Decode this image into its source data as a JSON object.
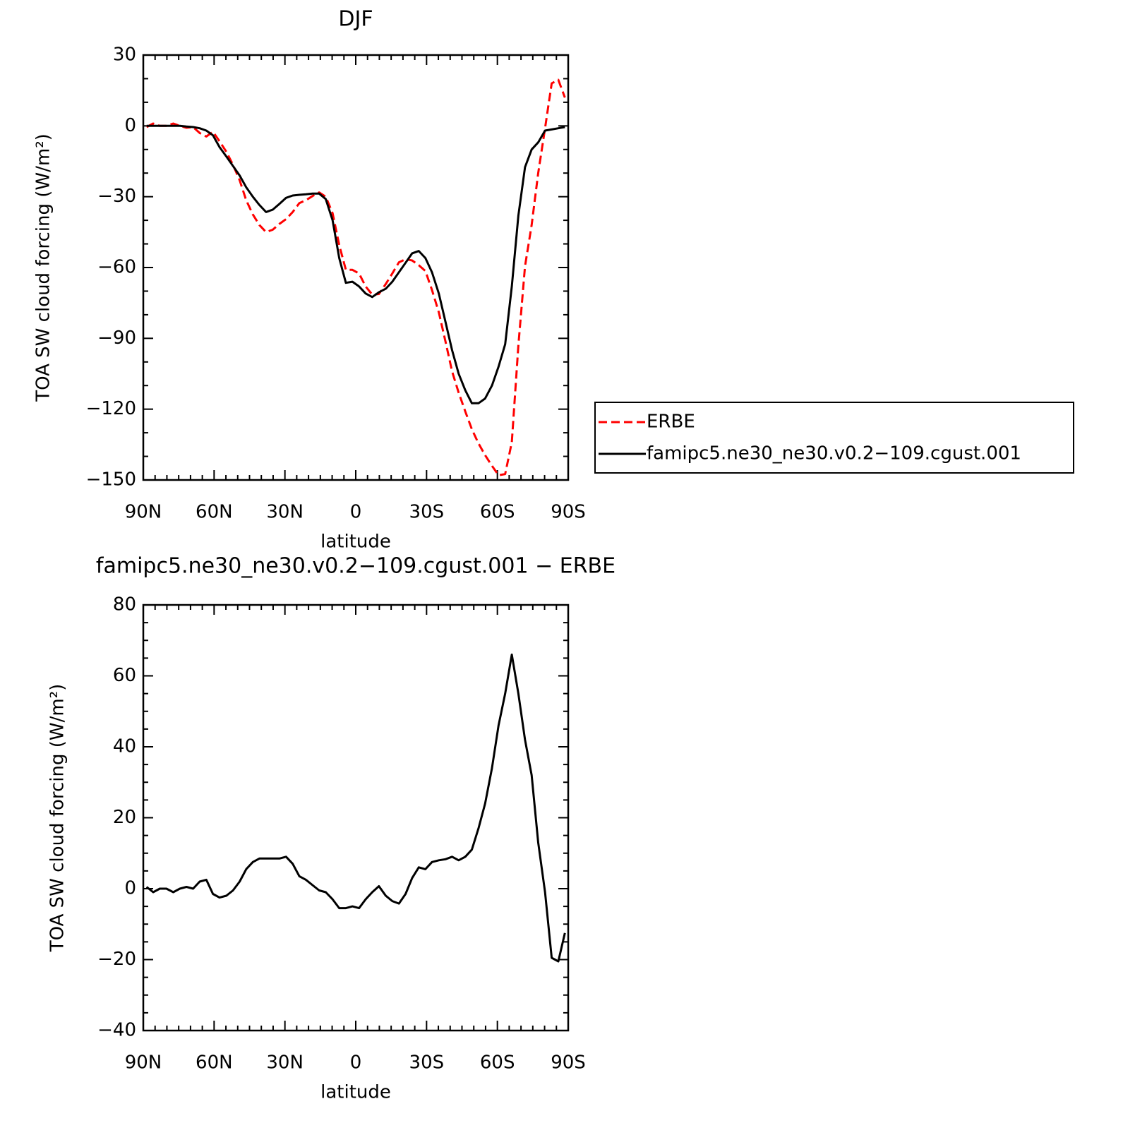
{
  "chart_data": [
    {
      "type": "line",
      "title": "DJF",
      "xlabel": "latitude",
      "ylabel": "TOA SW cloud forcing (W/m²)",
      "x": [
        88.6,
        85.8,
        83.0,
        80.2,
        77.3,
        74.5,
        71.7,
        68.9,
        66.1,
        63.3,
        60.5,
        57.7,
        54.8,
        52.0,
        49.2,
        46.4,
        43.6,
        40.8,
        38.0,
        35.2,
        32.3,
        29.5,
        26.7,
        23.9,
        21.1,
        18.3,
        15.5,
        12.7,
        9.8,
        7.0,
        4.2,
        1.4,
        -1.4,
        -4.2,
        -7.0,
        -9.8,
        -12.7,
        -15.5,
        -18.3,
        -21.1,
        -23.9,
        -26.7,
        -29.5,
        -32.3,
        -35.2,
        -38.0,
        -40.8,
        -43.6,
        -46.4,
        -49.2,
        -52.0,
        -54.8,
        -57.7,
        -60.5,
        -63.3,
        -66.1,
        -68.9,
        -71.7,
        -74.5,
        -77.3,
        -80.2,
        -83.0,
        -85.8,
        -88.6
      ],
      "series": [
        {
          "name": "ERBE",
          "color": "#ff0000",
          "dash": true,
          "values": [
            -0.5,
            1,
            0,
            0,
            1,
            0,
            -0.8,
            -0.5,
            -3,
            -4.5,
            -2.5,
            -6.5,
            -11,
            -16.5,
            -23,
            -31.5,
            -37.5,
            -42,
            -45,
            -44,
            -41.5,
            -39.5,
            -36.5,
            -32.7,
            -31.5,
            -29.7,
            -28.2,
            -30,
            -37,
            -50.5,
            -61,
            -61,
            -62.5,
            -68,
            -71.5,
            -71.2,
            -67,
            -62.5,
            -57.8,
            -56.5,
            -57,
            -59,
            -61.5,
            -69.5,
            -79,
            -91.3,
            -104,
            -113,
            -121,
            -128.5,
            -134.5,
            -139.5,
            -144,
            -148,
            -147.5,
            -134,
            -93,
            -59.5,
            -42,
            -20,
            -1,
            18,
            19.5,
            12
          ]
        },
        {
          "name": "famipc5.ne30_ne30.v0.2−109.cgust.001",
          "color": "#000000",
          "dash": false,
          "values": [
            0,
            0,
            0,
            0,
            0,
            0,
            -0.3,
            -0.5,
            -1,
            -2,
            -4,
            -9,
            -13,
            -17,
            -21,
            -26,
            -30,
            -33.5,
            -36.5,
            -35.5,
            -33,
            -30.5,
            -29.5,
            -29.2,
            -29,
            -28.7,
            -28.7,
            -31,
            -40,
            -56,
            -66.5,
            -66,
            -68,
            -71,
            -72.5,
            -70.5,
            -69,
            -66,
            -62,
            -58,
            -54,
            -53,
            -56,
            -62,
            -71,
            -83,
            -95,
            -105,
            -112,
            -117.5,
            -117.5,
            -115.5,
            -110,
            -102,
            -92.5,
            -68,
            -38,
            -17.5,
            -10,
            -7,
            -2,
            -1.5,
            -1,
            -0.5
          ]
        }
      ],
      "xlim": [
        90,
        -90
      ],
      "xticks": [
        {
          "value": 90,
          "label": "90N"
        },
        {
          "value": 60,
          "label": "60N"
        },
        {
          "value": 30,
          "label": "30N"
        },
        0,
        {
          "value": -30,
          "label": "30S"
        },
        {
          "value": -60,
          "label": "60S"
        },
        {
          "value": -90,
          "label": "90S"
        }
      ],
      "xminorticks": [
        85,
        80,
        75,
        70,
        65,
        55,
        50,
        45,
        40,
        35,
        25,
        20,
        15,
        10,
        5,
        -5,
        -10,
        -15,
        -20,
        -25,
        -35,
        -40,
        -45,
        -50,
        -55,
        -65,
        -70,
        -75,
        -80,
        -85
      ],
      "ylim": [
        -150,
        30
      ],
      "yticks": [
        {
          "value": 30,
          "label": "30"
        },
        0,
        {
          "value": -30,
          "label": "−30"
        },
        {
          "value": -60,
          "label": "−60"
        },
        {
          "value": -90,
          "label": "−90"
        },
        {
          "value": -120,
          "label": "−120"
        },
        {
          "value": -150,
          "label": "−150"
        }
      ],
      "yminorticks": [
        20,
        10,
        -10,
        -20,
        -40,
        -50,
        -70,
        -80,
        -100,
        -110,
        -130,
        -140
      ],
      "legend": "outside right"
    },
    {
      "type": "line",
      "title": "famipc5.ne30_ne30.v0.2−109.cgust.001 − ERBE",
      "xlabel": "latitude",
      "ylabel": "TOA SW cloud forcing (W/m²)",
      "x": [
        88.6,
        85.8,
        83.0,
        80.2,
        77.3,
        74.5,
        71.7,
        68.9,
        66.1,
        63.3,
        60.5,
        57.7,
        54.8,
        52.0,
        49.2,
        46.4,
        43.6,
        40.8,
        38.0,
        35.2,
        32.3,
        29.5,
        26.7,
        23.9,
        21.1,
        18.3,
        15.5,
        12.7,
        9.8,
        7.0,
        4.2,
        1.4,
        -1.4,
        -4.2,
        -7.0,
        -9.8,
        -12.7,
        -15.5,
        -18.3,
        -21.1,
        -23.9,
        -26.7,
        -29.5,
        -32.3,
        -35.2,
        -38.0,
        -40.8,
        -43.6,
        -46.4,
        -49.2,
        -52.0,
        -54.8,
        -57.7,
        -60.5,
        -63.3,
        -66.1,
        -68.9,
        -71.7,
        -74.5,
        -77.3,
        -80.2,
        -83.0,
        -85.8,
        -88.6
      ],
      "series": [
        {
          "color": "#000000",
          "dash": false,
          "values": [
            0.5,
            -1,
            0,
            0,
            -1,
            0,
            0.5,
            0,
            2,
            2.5,
            -1.5,
            -2.5,
            -2,
            -0.5,
            2,
            5.5,
            7.5,
            8.5,
            8.5,
            8.5,
            8.5,
            9,
            7,
            3.5,
            2.5,
            1,
            -0.5,
            -1,
            -3,
            -5.5,
            -5.5,
            -5,
            -5.5,
            -3,
            -1,
            0.7,
            -2,
            -3.5,
            -4.2,
            -1.5,
            3,
            6,
            5.5,
            7.5,
            8,
            8.3,
            9,
            8,
            9,
            11,
            17,
            24,
            34,
            46,
            55,
            66,
            55,
            42,
            32,
            13,
            -1,
            -19.5,
            -20.5,
            -12.5
          ]
        }
      ],
      "xlim": [
        90,
        -90
      ],
      "xticks": [
        {
          "value": 90,
          "label": "90N"
        },
        {
          "value": 60,
          "label": "60N"
        },
        {
          "value": 30,
          "label": "30N"
        },
        0,
        {
          "value": -30,
          "label": "30S"
        },
        {
          "value": -60,
          "label": "60S"
        },
        {
          "value": -90,
          "label": "90S"
        }
      ],
      "xminorticks": [
        85,
        80,
        75,
        70,
        65,
        55,
        50,
        45,
        40,
        35,
        25,
        20,
        15,
        10,
        5,
        -5,
        -10,
        -15,
        -20,
        -25,
        -35,
        -40,
        -45,
        -50,
        -55,
        -65,
        -70,
        -75,
        -80,
        -85
      ],
      "ylim": [
        -40,
        80
      ],
      "yticks": [
        80,
        60,
        40,
        20,
        0,
        {
          "value": -20,
          "label": "−20"
        },
        {
          "value": -40,
          "label": "−40"
        }
      ],
      "yminorticks": [
        75,
        70,
        65,
        55,
        50,
        45,
        35,
        30,
        25,
        15,
        10,
        5,
        -5,
        -10,
        -15,
        -25,
        -30,
        -35
      ]
    }
  ]
}
